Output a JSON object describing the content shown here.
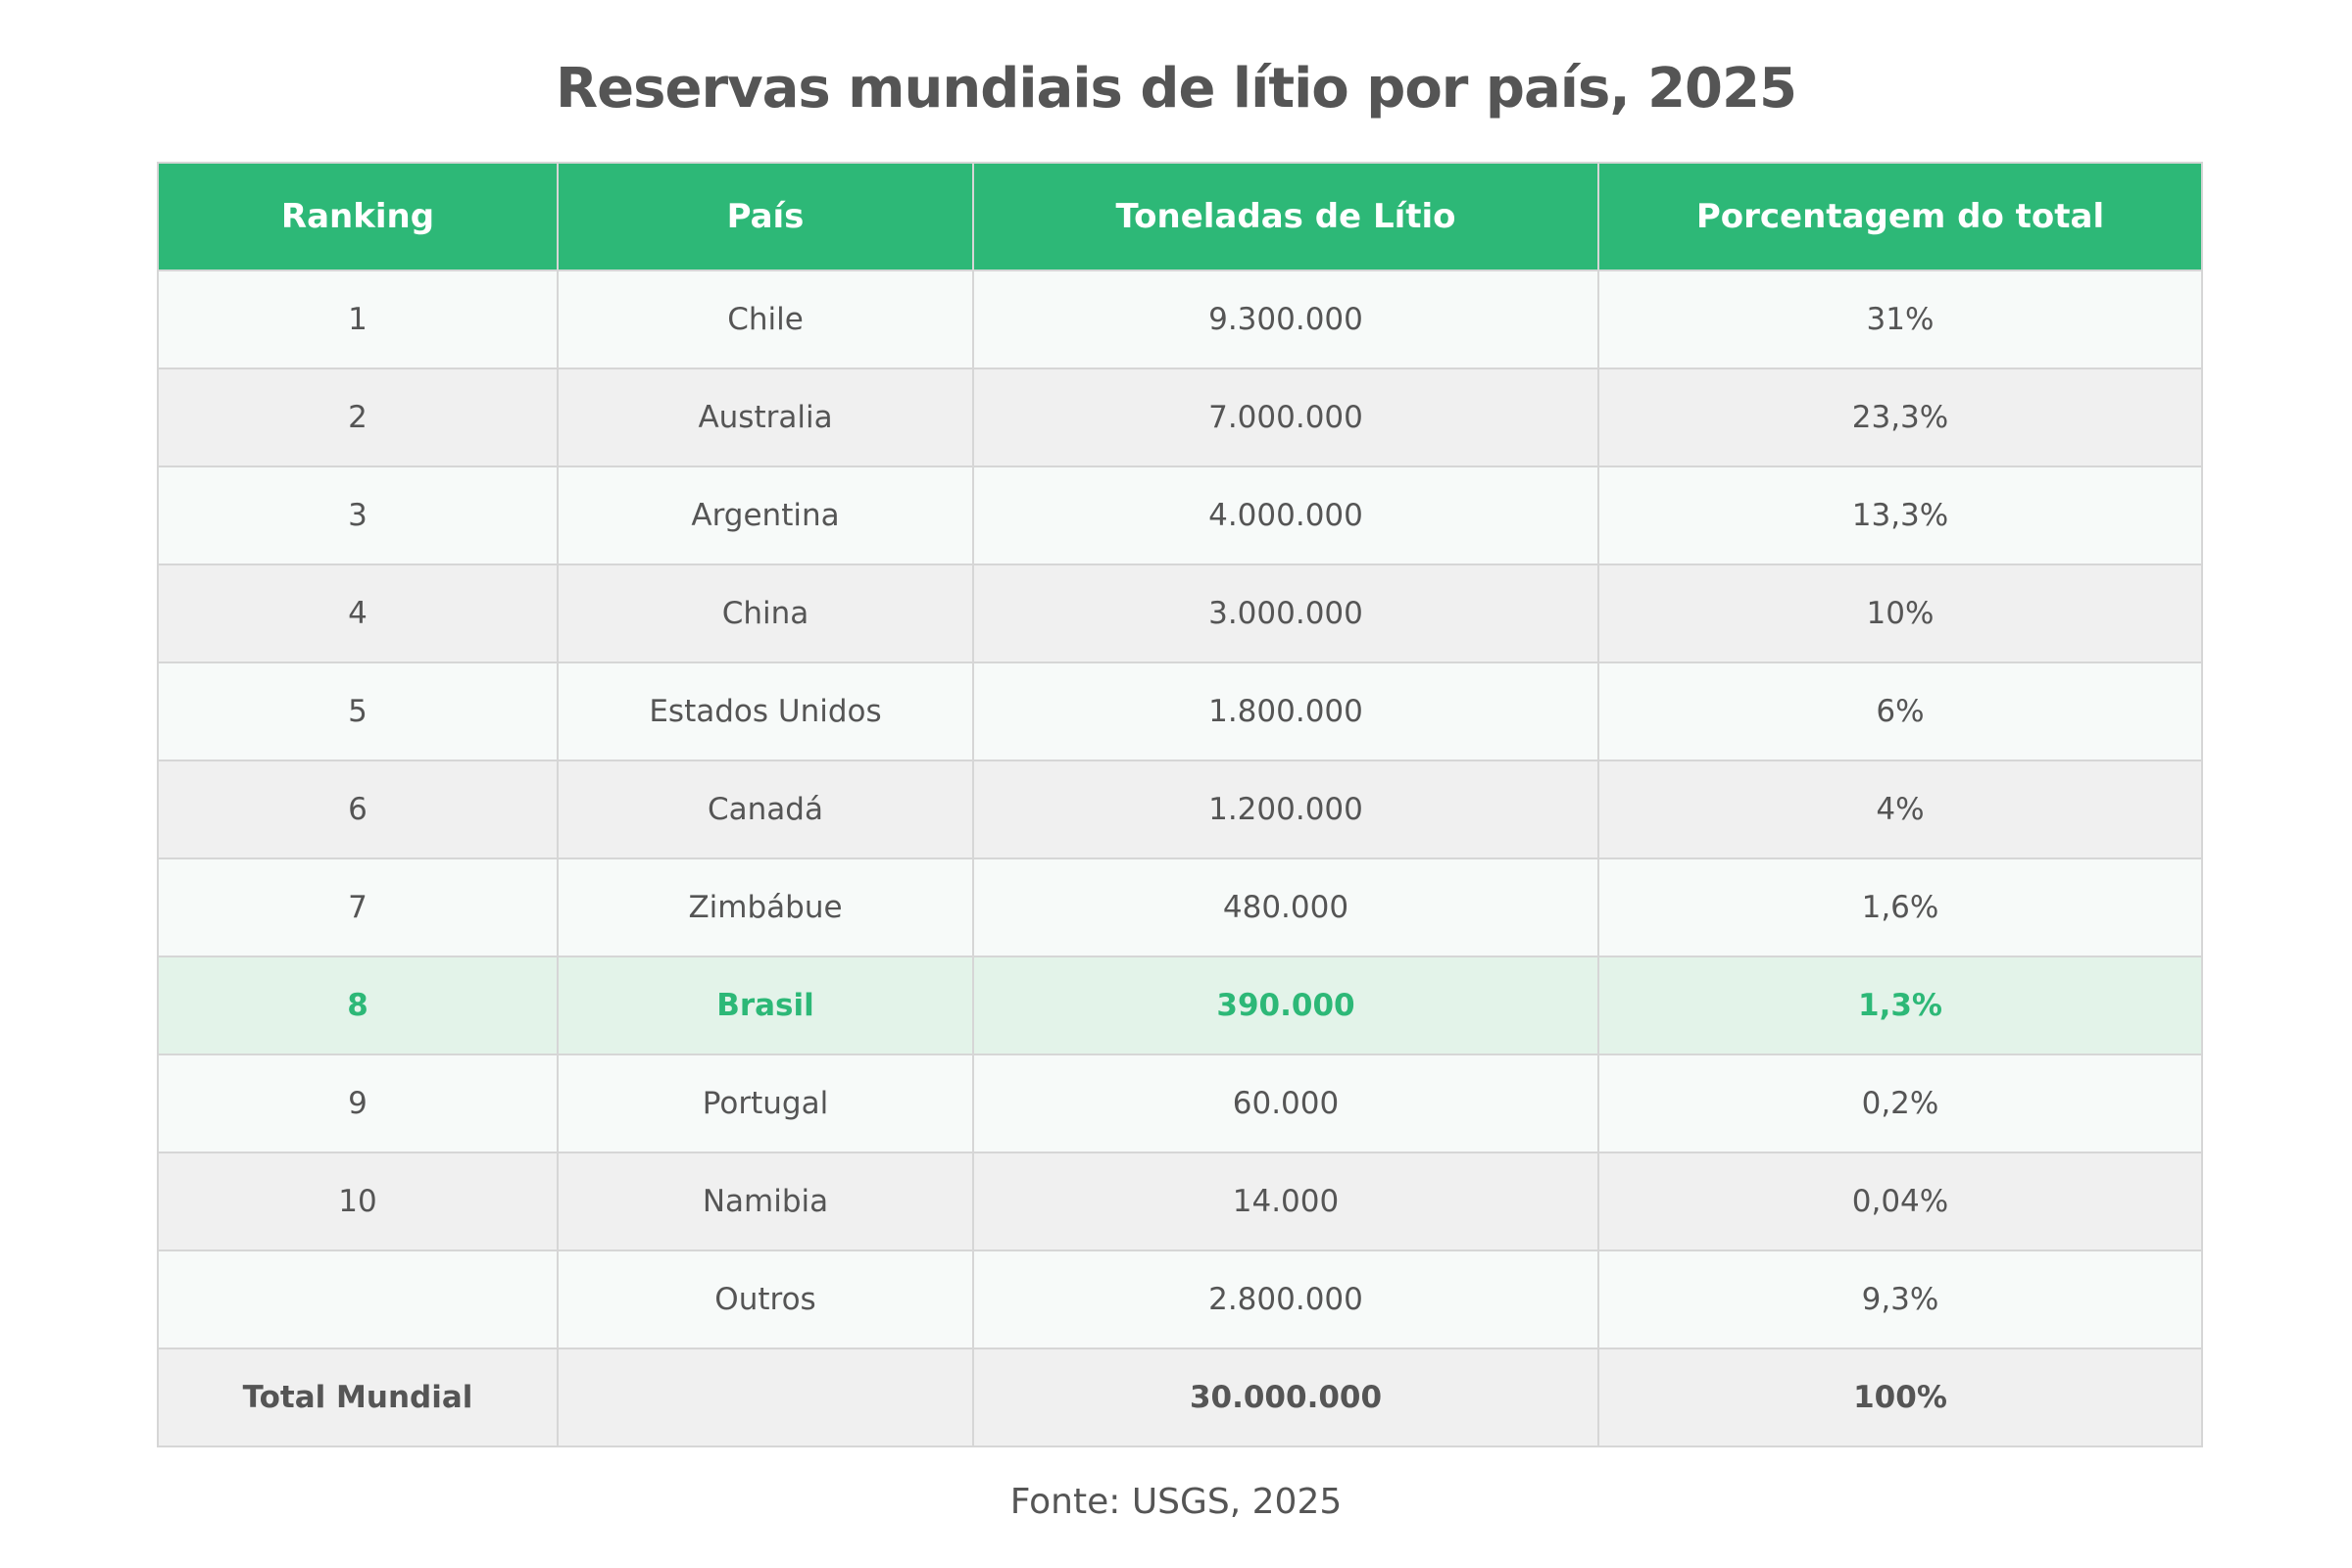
{
  "title": "Reservas mundiais de lítio por país, 2025",
  "source": "Fonte: USGS, 2025",
  "colors": {
    "header_bg": "#2db877",
    "header_text": "#ffffff",
    "highlight_text": "#2db877",
    "highlight_bg": "#e3f3e9",
    "row_light": "#f7faf9",
    "row_gray": "#f0f0f0",
    "text": "#555555"
  },
  "chart_data": {
    "type": "table",
    "title": "Reservas mundiais de lítio por país, 2025",
    "columns": [
      "Ranking",
      "País",
      "Toneladas de Lítio",
      "Porcentagem do total"
    ],
    "rows": [
      [
        "1",
        "Chile",
        "9.300.000",
        "31%"
      ],
      [
        "2",
        "Australia",
        "7.000.000",
        "23,3%"
      ],
      [
        "3",
        "Argentina",
        "4.000.000",
        "13,3%"
      ],
      [
        "4",
        "China",
        "3.000.000",
        "10%"
      ],
      [
        "5",
        "Estados Unidos",
        "1.800.000",
        "6%"
      ],
      [
        "6",
        "Canadá",
        "1.200.000",
        "4%"
      ],
      [
        "7",
        "Zimbábue",
        "480.000",
        "1,6%"
      ],
      [
        "8",
        "Brasil",
        "390.000",
        "1,3%"
      ],
      [
        "9",
        "Portugal",
        "60.000",
        "0,2%"
      ],
      [
        "10",
        "Namibia",
        "14.000",
        "0,04%"
      ],
      [
        "",
        "Outros",
        "2.800.000",
        "9,3%"
      ],
      [
        "Total Mundial",
        "",
        "30.000.000",
        "100%"
      ]
    ],
    "highlighted_row": "Brasil",
    "total_row": "Total Mundial"
  }
}
